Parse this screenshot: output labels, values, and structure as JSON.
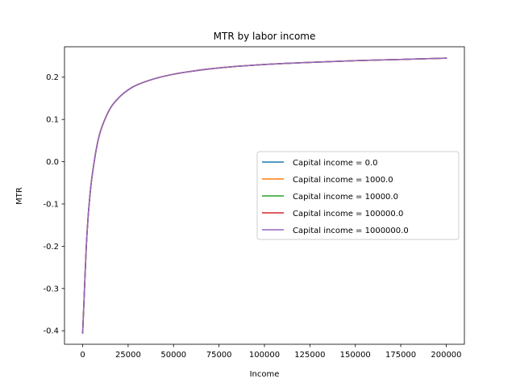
{
  "chart_data": {
    "type": "line",
    "title": "MTR by labor income",
    "xlabel": "Income",
    "ylabel": "MTR",
    "xlim": [
      -10000,
      210000
    ],
    "ylim": [
      -0.432,
      0.272
    ],
    "xticks": [
      0,
      25000,
      50000,
      75000,
      100000,
      125000,
      150000,
      175000,
      200000
    ],
    "yticks": [
      -0.4,
      -0.3,
      -0.2,
      -0.1,
      0.0,
      0.1,
      0.2
    ],
    "xtick_labels": [
      "0",
      "25000",
      "50000",
      "75000",
      "100000",
      "125000",
      "150000",
      "175000",
      "200000"
    ],
    "ytick_labels": [
      "-0.4",
      "-0.3",
      "-0.2",
      "-0.1",
      "0.0",
      "0.1",
      "0.2"
    ],
    "grid": false,
    "legend_position": "center-right",
    "x": [
      0,
      1000,
      2000,
      3000,
      4000,
      5000,
      7500,
      10000,
      15000,
      20000,
      25000,
      30000,
      40000,
      50000,
      60000,
      75000,
      100000,
      125000,
      150000,
      175000,
      200000
    ],
    "series": [
      {
        "name": "Capital income = 0.0",
        "color": "#1f77b4",
        "values": [
          -0.405,
          -0.3,
          -0.2,
          -0.13,
          -0.08,
          -0.04,
          0.03,
          0.075,
          0.125,
          0.152,
          0.17,
          0.182,
          0.197,
          0.207,
          0.214,
          0.222,
          0.23,
          0.235,
          0.239,
          0.242,
          0.245
        ]
      },
      {
        "name": "Capital income = 1000.0",
        "color": "#ff7f0e",
        "values": [
          -0.405,
          -0.3,
          -0.2,
          -0.13,
          -0.08,
          -0.04,
          0.03,
          0.075,
          0.125,
          0.152,
          0.17,
          0.182,
          0.197,
          0.207,
          0.214,
          0.222,
          0.23,
          0.235,
          0.239,
          0.242,
          0.245
        ]
      },
      {
        "name": "Capital income = 10000.0",
        "color": "#2ca02c",
        "values": [
          -0.405,
          -0.3,
          -0.2,
          -0.13,
          -0.08,
          -0.04,
          0.03,
          0.075,
          0.125,
          0.152,
          0.17,
          0.182,
          0.197,
          0.207,
          0.214,
          0.222,
          0.23,
          0.235,
          0.239,
          0.242,
          0.245
        ]
      },
      {
        "name": "Capital income = 100000.0",
        "color": "#d62728",
        "values": [
          -0.405,
          -0.3,
          -0.2,
          -0.13,
          -0.08,
          -0.04,
          0.03,
          0.075,
          0.125,
          0.152,
          0.17,
          0.182,
          0.197,
          0.207,
          0.214,
          0.222,
          0.23,
          0.235,
          0.239,
          0.242,
          0.245
        ]
      },
      {
        "name": "Capital income = 1000000.0",
        "color": "#9467bd",
        "values": [
          -0.405,
          -0.3,
          -0.2,
          -0.13,
          -0.08,
          -0.04,
          0.03,
          0.075,
          0.125,
          0.152,
          0.17,
          0.182,
          0.197,
          0.207,
          0.214,
          0.222,
          0.23,
          0.235,
          0.239,
          0.242,
          0.245
        ]
      }
    ]
  }
}
